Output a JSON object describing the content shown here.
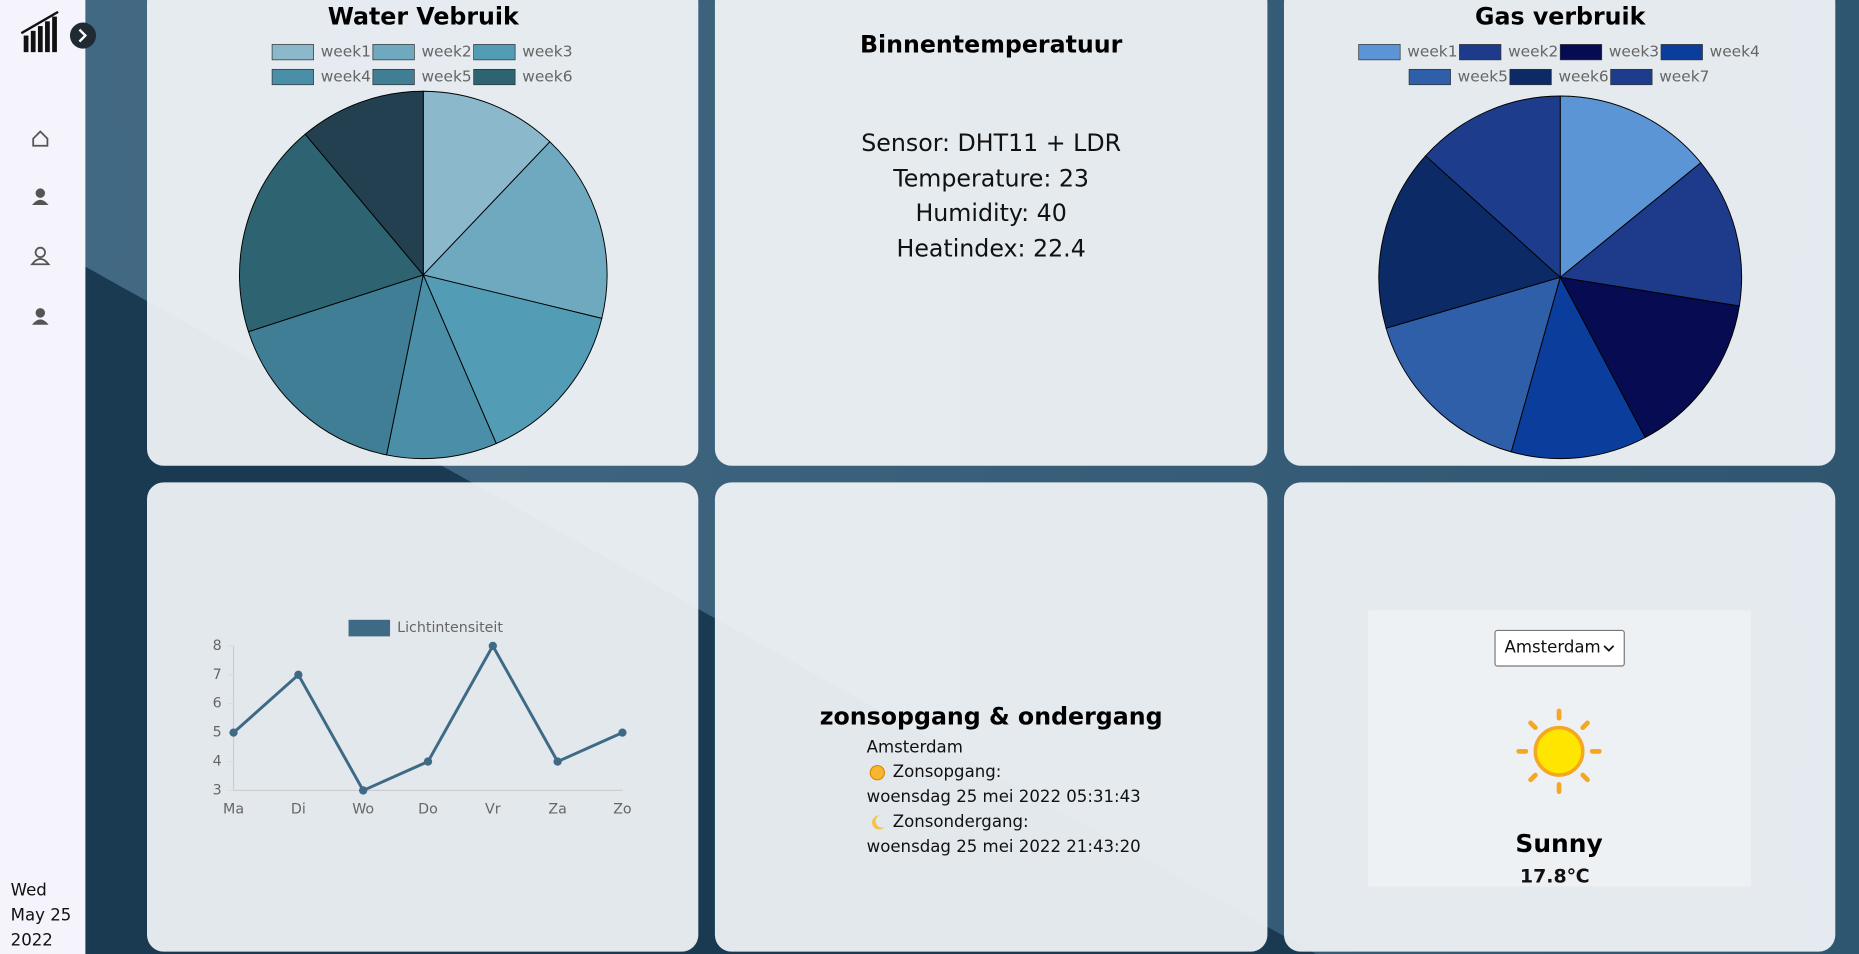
{
  "sidebar": {
    "date": [
      "Wed",
      "May 25",
      "2022"
    ]
  },
  "chart_data": [
    {
      "type": "pie",
      "title": "Water Vebruik",
      "categories": [
        "week1",
        "week2",
        "week3",
        "week4",
        "week5",
        "week6",
        null
      ],
      "values": [
        12.1,
        16.7,
        14.7,
        9.7,
        16.8,
        18.9,
        11.1
      ],
      "colors": [
        "#8bb8cb",
        "#6ea9bf",
        "#539cb5",
        "#4a8ea8",
        "#3f7e95",
        "#2e6372",
        "#22404f"
      ],
      "legend": "top"
    },
    {
      "type": "line",
      "categories": [
        "Ma",
        "Di",
        "Wo",
        "Do",
        "Vr",
        "Za",
        "Zo"
      ],
      "series": [
        {
          "name": "Lichtintensiteit",
          "color": "#3e6a86",
          "values": [
            5,
            7,
            3,
            4,
            8,
            4,
            5
          ]
        }
      ],
      "ylim": [
        3,
        8
      ],
      "yticks": [
        3,
        4,
        5,
        6,
        7,
        8
      ],
      "grid": false,
      "legend": "top"
    },
    {
      "type": "pie",
      "title": "Gas verbruik",
      "categories": [
        "week1",
        "week2",
        "week3",
        "week4",
        "week5",
        "week6",
        "week7"
      ],
      "values": [
        14.1,
        13.4,
        14.7,
        12.1,
        16.1,
        16.2,
        13.3
      ],
      "colors": [
        "#5b95d6",
        "#1e3a8a",
        "#060b52",
        "#0b3d9c",
        "#2f5fa8",
        "#0c2a66",
        "#1e3c8c"
      ],
      "legend": "top"
    }
  ],
  "sensor": {
    "title": "Binnentemperatuur",
    "lines": [
      "Sensor: DHT11 + LDR",
      "Temperature: 23",
      "Humidity: 40",
      "Heatindex: 22.4"
    ]
  },
  "sun": {
    "title": "zonsopgang & ondergang",
    "city": "Amsterdam",
    "sunrise_label": "Zonsopgang:",
    "sunrise": "woensdag 25 mei 2022 05:31:43",
    "sunset_label": "Zonsondergang:",
    "sunset": "woensdag 25 mei 2022 21:43:20"
  },
  "weather": {
    "city": "Amsterdam",
    "condition": "Sunny",
    "temperature": "17.8℃"
  }
}
